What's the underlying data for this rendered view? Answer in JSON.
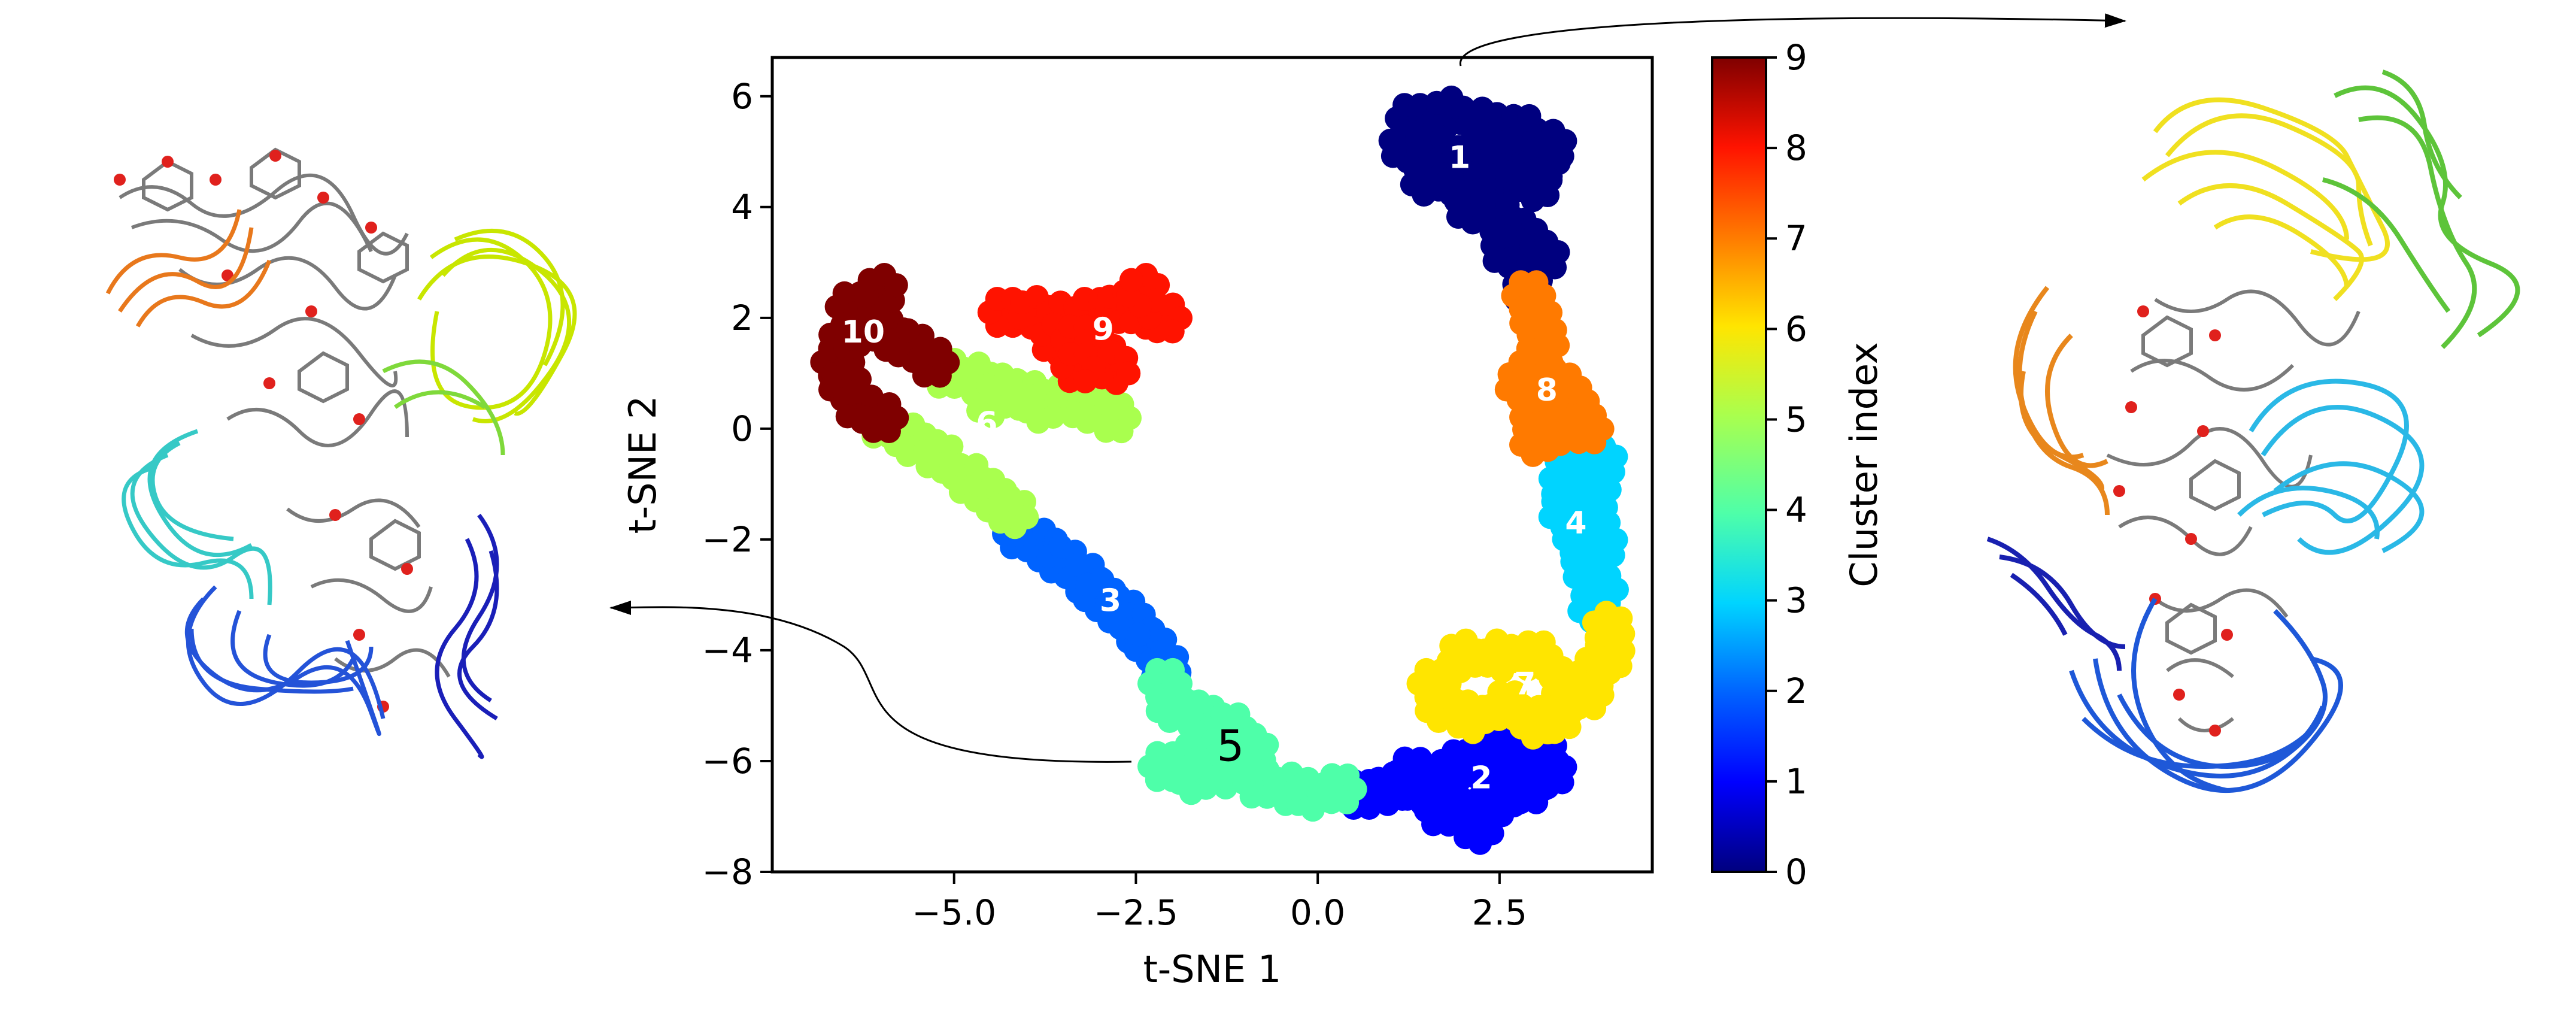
{
  "chart_data": {
    "type": "scatter",
    "xlabel": "t-SNE 1",
    "ylabel": "t-SNE 2",
    "xlim": [
      -7.5,
      4.6
    ],
    "ylim": [
      -8,
      6.7
    ],
    "xticks": [
      -5.0,
      -2.5,
      0.0,
      2.5
    ],
    "xtick_labels": [
      "−5.0",
      "−2.5",
      "0.0",
      "2.5"
    ],
    "yticks": [
      -8,
      -6,
      -4,
      -2,
      0,
      2,
      4,
      6
    ],
    "ytick_labels": [
      "−8",
      "−6",
      "−4",
      "−2",
      "0",
      "2",
      "4",
      "6"
    ],
    "grid": false,
    "colorbar": {
      "label": "Cluster index",
      "range": [
        0,
        9
      ],
      "ticks": [
        "0",
        "1",
        "2",
        "3",
        "4",
        "5",
        "6",
        "7",
        "8",
        "9"
      ],
      "colors": [
        "#00007f",
        "#0000ff",
        "#0063ff",
        "#00d4ff",
        "#4effa9",
        "#a9ff4e",
        "#ffe500",
        "#ff7a00",
        "#ff1300",
        "#7f0000"
      ]
    },
    "clusters": [
      {
        "label": "1",
        "index": 0,
        "label_pos": [
          1.95,
          4.9
        ],
        "centers": [
          [
            1.3,
            5.6
          ],
          [
            1.8,
            5.7
          ],
          [
            2.3,
            5.5
          ],
          [
            2.8,
            5.4
          ],
          [
            3.2,
            5.1
          ],
          [
            1.2,
            5.1
          ],
          [
            1.6,
            5.0
          ],
          [
            2.1,
            4.9
          ],
          [
            2.6,
            4.9
          ],
          [
            3.1,
            4.8
          ],
          [
            1.5,
            4.5
          ],
          [
            2.0,
            4.4
          ],
          [
            2.5,
            4.3
          ],
          [
            3.0,
            4.4
          ],
          [
            2.1,
            4.0
          ],
          [
            2.5,
            3.8
          ],
          [
            2.8,
            3.5
          ],
          [
            2.6,
            3.2
          ],
          [
            2.9,
            2.9
          ],
          [
            3.1,
            3.1
          ],
          [
            2.9,
            2.5
          ]
        ]
      },
      {
        "label": "2",
        "index": 1,
        "label_pos": [
          2.25,
          -6.3
        ],
        "centers": [
          [
            0.6,
            -6.6
          ],
          [
            1.0,
            -6.5
          ],
          [
            1.4,
            -6.5
          ],
          [
            1.8,
            -6.8
          ],
          [
            2.2,
            -6.9
          ],
          [
            2.5,
            -6.7
          ],
          [
            2.9,
            -6.5
          ],
          [
            3.2,
            -6.2
          ],
          [
            3.1,
            -5.9
          ],
          [
            2.6,
            -5.9
          ],
          [
            2.2,
            -6.0
          ],
          [
            1.9,
            -6.1
          ],
          [
            1.3,
            -6.2
          ],
          [
            2.5,
            -5.6
          ],
          [
            2.2,
            -7.2
          ],
          [
            1.7,
            -6.9
          ]
        ]
      },
      {
        "label": "3",
        "index": 2,
        "label_pos": [
          -2.85,
          -3.1
        ],
        "centers": [
          [
            -4.1,
            -1.9
          ],
          [
            -3.8,
            -2.1
          ],
          [
            -3.5,
            -2.4
          ],
          [
            -3.2,
            -2.7
          ],
          [
            -3.0,
            -3.0
          ],
          [
            -2.7,
            -3.3
          ],
          [
            -2.5,
            -3.6
          ],
          [
            -2.3,
            -3.9
          ],
          [
            -2.1,
            -4.3
          ]
        ]
      },
      {
        "label": "4",
        "index": 3,
        "label_pos": [
          3.55,
          -1.7
        ],
        "centers": [
          [
            3.5,
            -0.6
          ],
          [
            3.9,
            -0.6
          ],
          [
            3.4,
            -1.0
          ],
          [
            3.8,
            -1.1
          ],
          [
            3.4,
            -1.5
          ],
          [
            3.8,
            -1.6
          ],
          [
            3.6,
            -2.0
          ],
          [
            3.9,
            -2.1
          ],
          [
            3.7,
            -2.5
          ],
          [
            3.9,
            -2.9
          ],
          [
            3.8,
            -3.2
          ]
        ]
      },
      {
        "label": "5",
        "index": 4,
        "label_pos": [
          -1.2,
          -5.8
        ],
        "label_style": "plain",
        "centers": [
          [
            -2.1,
            -4.6
          ],
          [
            -2.0,
            -5.0
          ],
          [
            -1.6,
            -5.2
          ],
          [
            -1.2,
            -5.4
          ],
          [
            -0.9,
            -5.8
          ],
          [
            -1.6,
            -5.8
          ],
          [
            -2.1,
            -6.1
          ],
          [
            -1.7,
            -6.3
          ],
          [
            -1.3,
            -6.2
          ],
          [
            -0.8,
            -6.4
          ],
          [
            -0.4,
            -6.5
          ],
          [
            -0.1,
            -6.6
          ],
          [
            0.3,
            -6.5
          ]
        ]
      },
      {
        "label": "6",
        "index": 5,
        "label_pos": [
          -4.55,
          0.1
        ],
        "centers": [
          [
            -6.0,
            0.1
          ],
          [
            -5.6,
            -0.2
          ],
          [
            -5.2,
            -0.5
          ],
          [
            -4.8,
            -0.9
          ],
          [
            -4.5,
            -1.2
          ],
          [
            -4.2,
            -1.5
          ],
          [
            -5.1,
            1.0
          ],
          [
            -4.7,
            0.9
          ],
          [
            -4.3,
            0.7
          ],
          [
            -4.0,
            0.6
          ],
          [
            -3.6,
            0.5
          ],
          [
            -3.2,
            0.4
          ],
          [
            -2.8,
            0.2
          ],
          [
            -3.8,
            0.4
          ],
          [
            -4.5,
            0.5
          ]
        ]
      },
      {
        "label": "7",
        "index": 6,
        "label_pos": [
          2.85,
          -4.6
        ],
        "centers": [
          [
            1.6,
            -4.6
          ],
          [
            2.0,
            -4.1
          ],
          [
            2.5,
            -4.1
          ],
          [
            3.0,
            -4.1
          ],
          [
            1.7,
            -5.0
          ],
          [
            2.1,
            -5.2
          ],
          [
            2.6,
            -5.0
          ],
          [
            3.0,
            -5.3
          ],
          [
            3.4,
            -4.6
          ],
          [
            3.8,
            -4.4
          ],
          [
            4.0,
            -4.1
          ],
          [
            4.0,
            -3.6
          ],
          [
            3.7,
            -4.8
          ],
          [
            3.3,
            -5.2
          ]
        ]
      },
      {
        "label": "8",
        "index": 7,
        "label_pos": [
          3.15,
          0.7
        ],
        "centers": [
          [
            2.9,
            2.4
          ],
          [
            3.0,
            2.0
          ],
          [
            3.1,
            1.6
          ],
          [
            3.0,
            1.2
          ],
          [
            2.8,
            0.8
          ],
          [
            3.3,
            0.8
          ],
          [
            3.5,
            0.5
          ],
          [
            3.0,
            0.3
          ],
          [
            3.3,
            0.0
          ],
          [
            3.7,
            0.0
          ],
          [
            3.0,
            -0.2
          ]
        ]
      },
      {
        "label": "9",
        "index": 8,
        "label_pos": [
          -2.95,
          1.8
        ],
        "centers": [
          [
            -4.3,
            2.1
          ],
          [
            -3.9,
            2.1
          ],
          [
            -3.5,
            2.0
          ],
          [
            -3.1,
            2.1
          ],
          [
            -2.7,
            2.2
          ],
          [
            -2.4,
            2.1
          ],
          [
            -2.1,
            2.0
          ],
          [
            -2.4,
            2.5
          ],
          [
            -3.6,
            1.6
          ],
          [
            -3.3,
            1.6
          ],
          [
            -3.0,
            1.4
          ],
          [
            -2.8,
            1.1
          ],
          [
            -3.3,
            1.1
          ]
        ]
      },
      {
        "label": "10",
        "index": 9,
        "label_pos": [
          -6.25,
          1.75
        ],
        "centers": [
          [
            -6.4,
            2.2
          ],
          [
            -6.2,
            1.9
          ],
          [
            -6.5,
            1.6
          ],
          [
            -6.6,
            1.2
          ],
          [
            -6.5,
            0.8
          ],
          [
            -6.3,
            0.4
          ],
          [
            -6.0,
            0.2
          ],
          [
            -5.9,
            1.7
          ],
          [
            -5.6,
            1.5
          ],
          [
            -5.3,
            1.2
          ],
          [
            -6.0,
            2.5
          ]
        ]
      }
    ],
    "annotation_label": "5"
  },
  "structures": {
    "left_icon": "protein-ensemble-cluster-5",
    "right_icon": "protein-ensemble-cluster-1"
  }
}
